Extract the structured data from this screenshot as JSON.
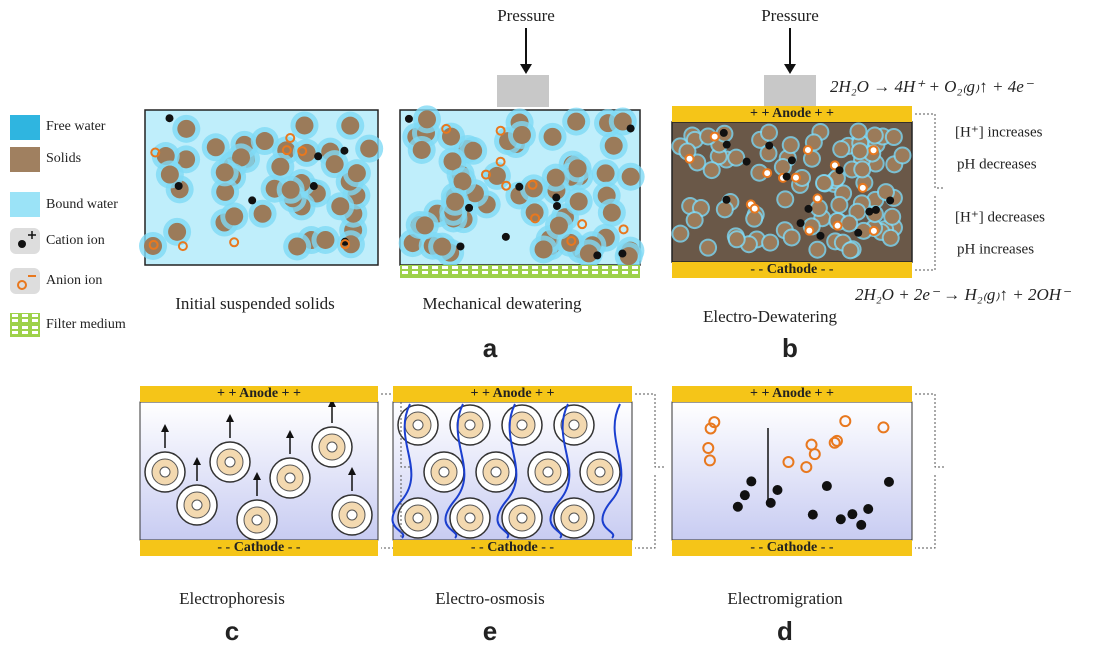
{
  "legend": [
    {
      "label": "Free water"
    },
    {
      "label": "Solids"
    },
    {
      "label": "Bound water"
    },
    {
      "label": "Cation ion"
    },
    {
      "label": "Anion ion"
    },
    {
      "label": "Filter medium"
    }
  ],
  "top_panels": [
    {
      "caption": "Initial suspended solids"
    },
    {
      "caption": "Mechanical dewatering",
      "pressure": "Pressure",
      "letter": "a"
    },
    {
      "caption": "Electro-Dewatering",
      "pressure": "Pressure",
      "letter": "b",
      "anode": "+ + Anode + +",
      "cathode": "- - Cathode - -"
    }
  ],
  "equations": {
    "anode_reaction": "2H₂O → 4H⁺ + O₂₍g₎↑ + 4e⁻",
    "anode_h": "[H⁺] increases",
    "anode_ph": "pH decreases",
    "cathode_h": "[H⁺] decreases",
    "cathode_ph": "pH increases",
    "cathode_reaction": "2H₂O + 2e⁻ → H₂₍g₎↑ + 2OH⁻"
  },
  "bottom_panels": [
    {
      "caption": "Electrophoresis",
      "letter": "c",
      "anode": "+ + Anode + +",
      "cathode": "- - Cathode - -"
    },
    {
      "caption": "Electro-osmosis",
      "letter": "e",
      "anode": "+ + Anode + +",
      "cathode": "- - Cathode - -"
    },
    {
      "caption": "Electromigration",
      "letter": "d",
      "anode": "+ + Anode + +",
      "cathode": "- - Cathode - -"
    }
  ]
}
